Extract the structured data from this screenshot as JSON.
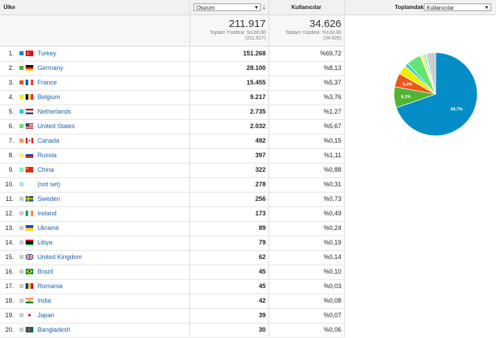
{
  "header": {
    "dimension_label": "Ülke",
    "metric_select": "Oturum",
    "sort_icon": "↓",
    "users_label": "Kullanıcılar",
    "contribution_label": "Toplamdaki katkısı:",
    "contribution_select": "Kullanıcılar"
  },
  "totals": {
    "sessions": "211.917",
    "sessions_pct": "Toplam Yüzdesi: %100,00",
    "sessions_total": "(211.917)",
    "users": "34.626",
    "users_pct": "Toplam Yüzdesi: %100,00",
    "users_total": "(34.626)"
  },
  "rows": [
    {
      "n": "1.",
      "country": "Turkey",
      "sessions": "151.268",
      "users_pct": "%69,72",
      "color": "#058dc7",
      "flag": "tr"
    },
    {
      "n": "2.",
      "country": "Germany",
      "sessions": "28.100",
      "users_pct": "%8,13",
      "color": "#50b432",
      "flag": "de"
    },
    {
      "n": "3.",
      "country": "France",
      "sessions": "15.455",
      "users_pct": "%5,37",
      "color": "#ed561b",
      "flag": "fr"
    },
    {
      "n": "4.",
      "country": "Belgium",
      "sessions": "9.217",
      "users_pct": "%3,76",
      "color": "#edef00",
      "flag": "be"
    },
    {
      "n": "5.",
      "country": "Netherlands",
      "sessions": "2.735",
      "users_pct": "%1,27",
      "color": "#24cbe5",
      "flag": "nl"
    },
    {
      "n": "6.",
      "country": "United States",
      "sessions": "2.032",
      "users_pct": "%5,67",
      "color": "#64e572",
      "flag": "us"
    },
    {
      "n": "7.",
      "country": "Canada",
      "sessions": "492",
      "users_pct": "%0,15",
      "color": "#ff9655",
      "flag": "ca"
    },
    {
      "n": "8.",
      "country": "Russia",
      "sessions": "397",
      "users_pct": "%1,11",
      "color": "#fff263",
      "flag": "ru"
    },
    {
      "n": "9.",
      "country": "China",
      "sessions": "322",
      "users_pct": "%0,88",
      "color": "#6af9c4",
      "flag": "cn"
    },
    {
      "n": "10.",
      "country": "(not set)",
      "sessions": "278",
      "users_pct": "%0,31",
      "color": "#b2deff",
      "flag": "none"
    },
    {
      "n": "11.",
      "country": "Sweden",
      "sessions": "256",
      "users_pct": "%0,73",
      "color": "#cccccc",
      "flag": "se"
    },
    {
      "n": "12.",
      "country": "Ireland",
      "sessions": "173",
      "users_pct": "%0,49",
      "color": "#cccccc",
      "flag": "ie"
    },
    {
      "n": "13.",
      "country": "Ukraine",
      "sessions": "89",
      "users_pct": "%0,24",
      "color": "#cccccc",
      "flag": "ua"
    },
    {
      "n": "14.",
      "country": "Libya",
      "sessions": "79",
      "users_pct": "%0,19",
      "color": "#cccccc",
      "flag": "ly"
    },
    {
      "n": "15.",
      "country": "United Kingdom",
      "sessions": "62",
      "users_pct": "%0,14",
      "color": "#cccccc",
      "flag": "gb"
    },
    {
      "n": "16.",
      "country": "Brazil",
      "sessions": "45",
      "users_pct": "%0,10",
      "color": "#cccccc",
      "flag": "br"
    },
    {
      "n": "17.",
      "country": "Romania",
      "sessions": "45",
      "users_pct": "%0,03",
      "color": "#cccccc",
      "flag": "ro"
    },
    {
      "n": "18.",
      "country": "India",
      "sessions": "42",
      "users_pct": "%0,08",
      "color": "#cccccc",
      "flag": "in"
    },
    {
      "n": "19.",
      "country": "Japan",
      "sessions": "39",
      "users_pct": "%0,07",
      "color": "#cccccc",
      "flag": "jp"
    },
    {
      "n": "20.",
      "country": "Bangladesh",
      "sessions": "30",
      "users_pct": "%0,06",
      "color": "#cccccc",
      "flag": "bd"
    }
  ],
  "pie": {
    "slices": [
      {
        "value": 69.72,
        "color": "#058dc7",
        "label": "69,7%"
      },
      {
        "value": 8.13,
        "color": "#50b432",
        "label": "8,1%"
      },
      {
        "value": 5.37,
        "color": "#ed561b",
        "label": "5,4%"
      },
      {
        "value": 3.76,
        "color": "#edef00",
        "label": ""
      },
      {
        "value": 1.27,
        "color": "#24cbe5",
        "label": ""
      },
      {
        "value": 5.67,
        "color": "#64e572",
        "label": ""
      },
      {
        "value": 0.15,
        "color": "#ff9655",
        "label": ""
      },
      {
        "value": 1.11,
        "color": "#fff263",
        "label": ""
      },
      {
        "value": 0.88,
        "color": "#6af9c4",
        "label": ""
      },
      {
        "value": 0.31,
        "color": "#b2deff",
        "label": ""
      },
      {
        "value": 3.63,
        "color": "#cccccc",
        "label": ""
      }
    ]
  }
}
